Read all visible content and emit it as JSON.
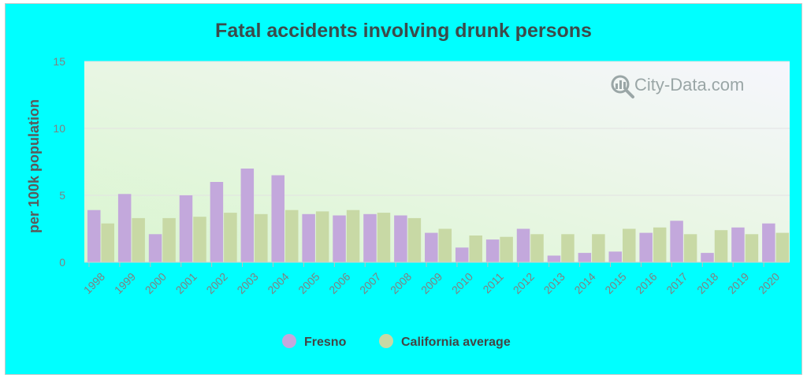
{
  "chart_data": {
    "type": "bar",
    "title": "Fatal accidents involving drunk persons",
    "ylabel": "per 100k population",
    "xlabel": "",
    "ylim": [
      0,
      15
    ],
    "yticks": [
      0,
      5,
      10,
      15
    ],
    "categories": [
      "1998",
      "1999",
      "2000",
      "2001",
      "2002",
      "2003",
      "2004",
      "2005",
      "2006",
      "2007",
      "2008",
      "2009",
      "2010",
      "2011",
      "2012",
      "2013",
      "2014",
      "2015",
      "2016",
      "2017",
      "2018",
      "2019",
      "2020"
    ],
    "series": [
      {
        "name": "Fresno",
        "color": "#c3a8dc",
        "values": [
          3.9,
          5.1,
          2.1,
          5.0,
          6.0,
          7.0,
          6.5,
          3.6,
          3.5,
          3.6,
          3.5,
          2.2,
          1.1,
          1.7,
          2.5,
          0.5,
          0.7,
          0.8,
          2.2,
          3.1,
          0.7,
          2.6,
          2.9
        ]
      },
      {
        "name": "California average",
        "color": "#c8d9a5",
        "values": [
          2.9,
          3.3,
          3.3,
          3.4,
          3.7,
          3.6,
          3.9,
          3.8,
          3.9,
          3.7,
          3.3,
          2.5,
          2.0,
          1.9,
          2.1,
          2.1,
          2.1,
          2.5,
          2.6,
          2.1,
          2.4,
          2.1,
          2.2
        ]
      }
    ],
    "legend_position": "bottom",
    "grid": true
  },
  "watermark": {
    "text": "City-Data.com",
    "icon": "magnifier-chart-icon"
  }
}
